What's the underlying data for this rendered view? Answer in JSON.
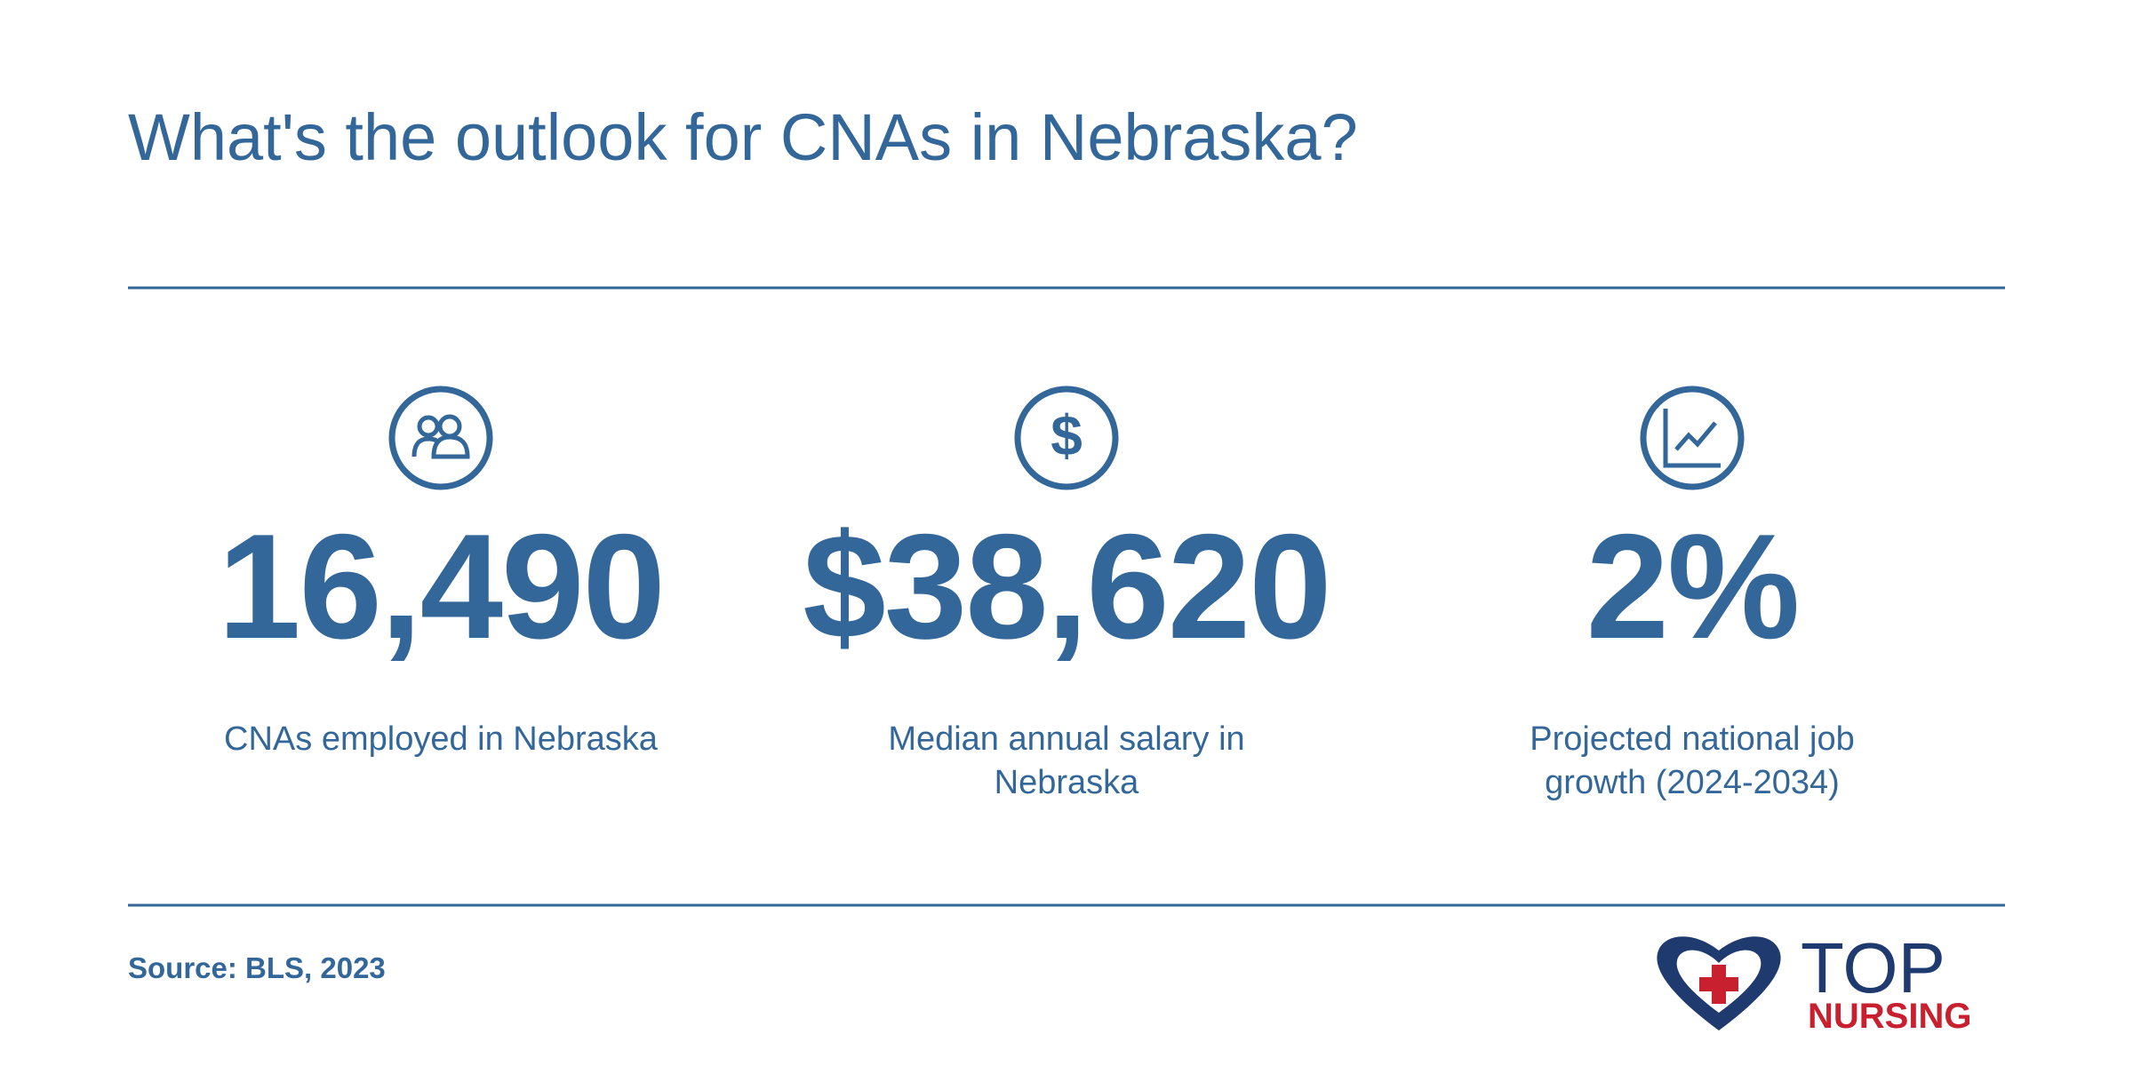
{
  "header": {
    "title": "What's the outlook for CNAs in Nebraska?"
  },
  "stats": [
    {
      "value": "16,490",
      "label": "CNAs employed in Nebraska"
    },
    {
      "value": "$38,620",
      "label": "Median annual salary in Nebraska"
    },
    {
      "value": "2%",
      "label": "Projected national job growth (2024-2034)"
    }
  ],
  "footer": {
    "source": "Source: BLS, 2023",
    "logo_top": "TOP",
    "logo_bottom": "NURSING"
  }
}
